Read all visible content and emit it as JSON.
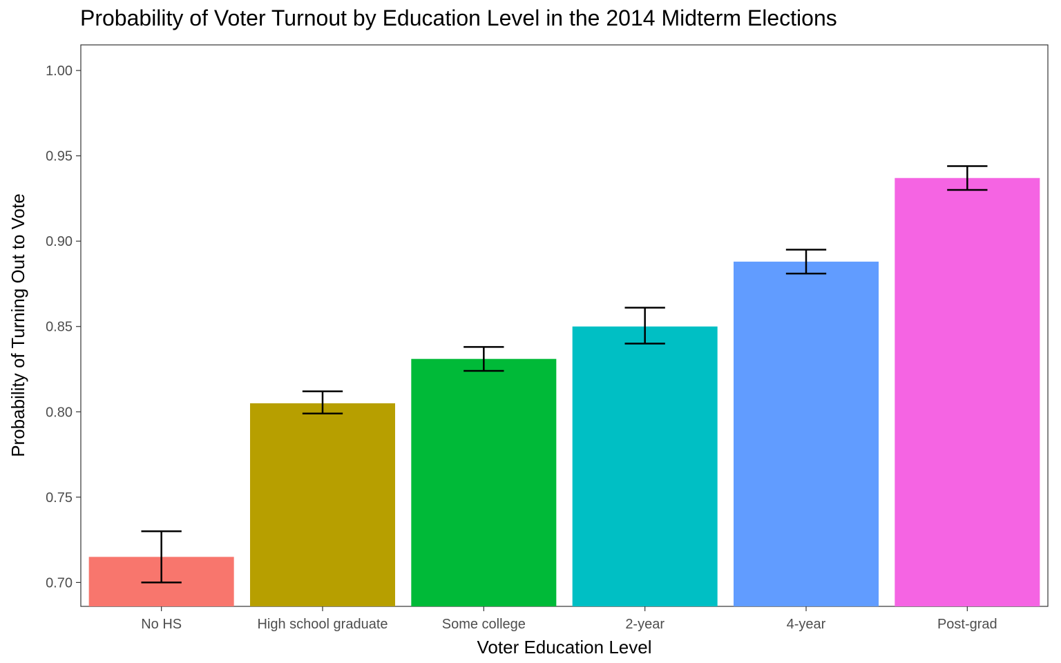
{
  "chart_data": {
    "type": "bar",
    "title": "Probability of Voter Turnout by Education Level in the 2014 Midterm Elections",
    "xlabel": "Voter Education Level",
    "ylabel": "Probability of Turning Out to Vote",
    "categories": [
      "No HS",
      "High school graduate",
      "Some college",
      "2-year",
      "4-year",
      "Post-grad"
    ],
    "values": [
      0.715,
      0.805,
      0.831,
      0.85,
      0.888,
      0.937
    ],
    "error_low": [
      0.7,
      0.799,
      0.824,
      0.84,
      0.881,
      0.93
    ],
    "error_high": [
      0.73,
      0.812,
      0.838,
      0.861,
      0.895,
      0.944
    ],
    "colors": [
      "#F8766D",
      "#B79F00",
      "#00BA38",
      "#00BFC4",
      "#619CFF",
      "#F564E3"
    ],
    "yticks": [
      0.7,
      0.75,
      0.8,
      0.85,
      0.9,
      0.95,
      1.0
    ],
    "ytick_labels": [
      "0.70",
      "0.75",
      "0.80",
      "0.85",
      "0.90",
      "0.95",
      "1.00"
    ],
    "ylim": [
      0.686,
      1.015
    ],
    "grid": false,
    "legend": "none",
    "panel_border": true
  }
}
